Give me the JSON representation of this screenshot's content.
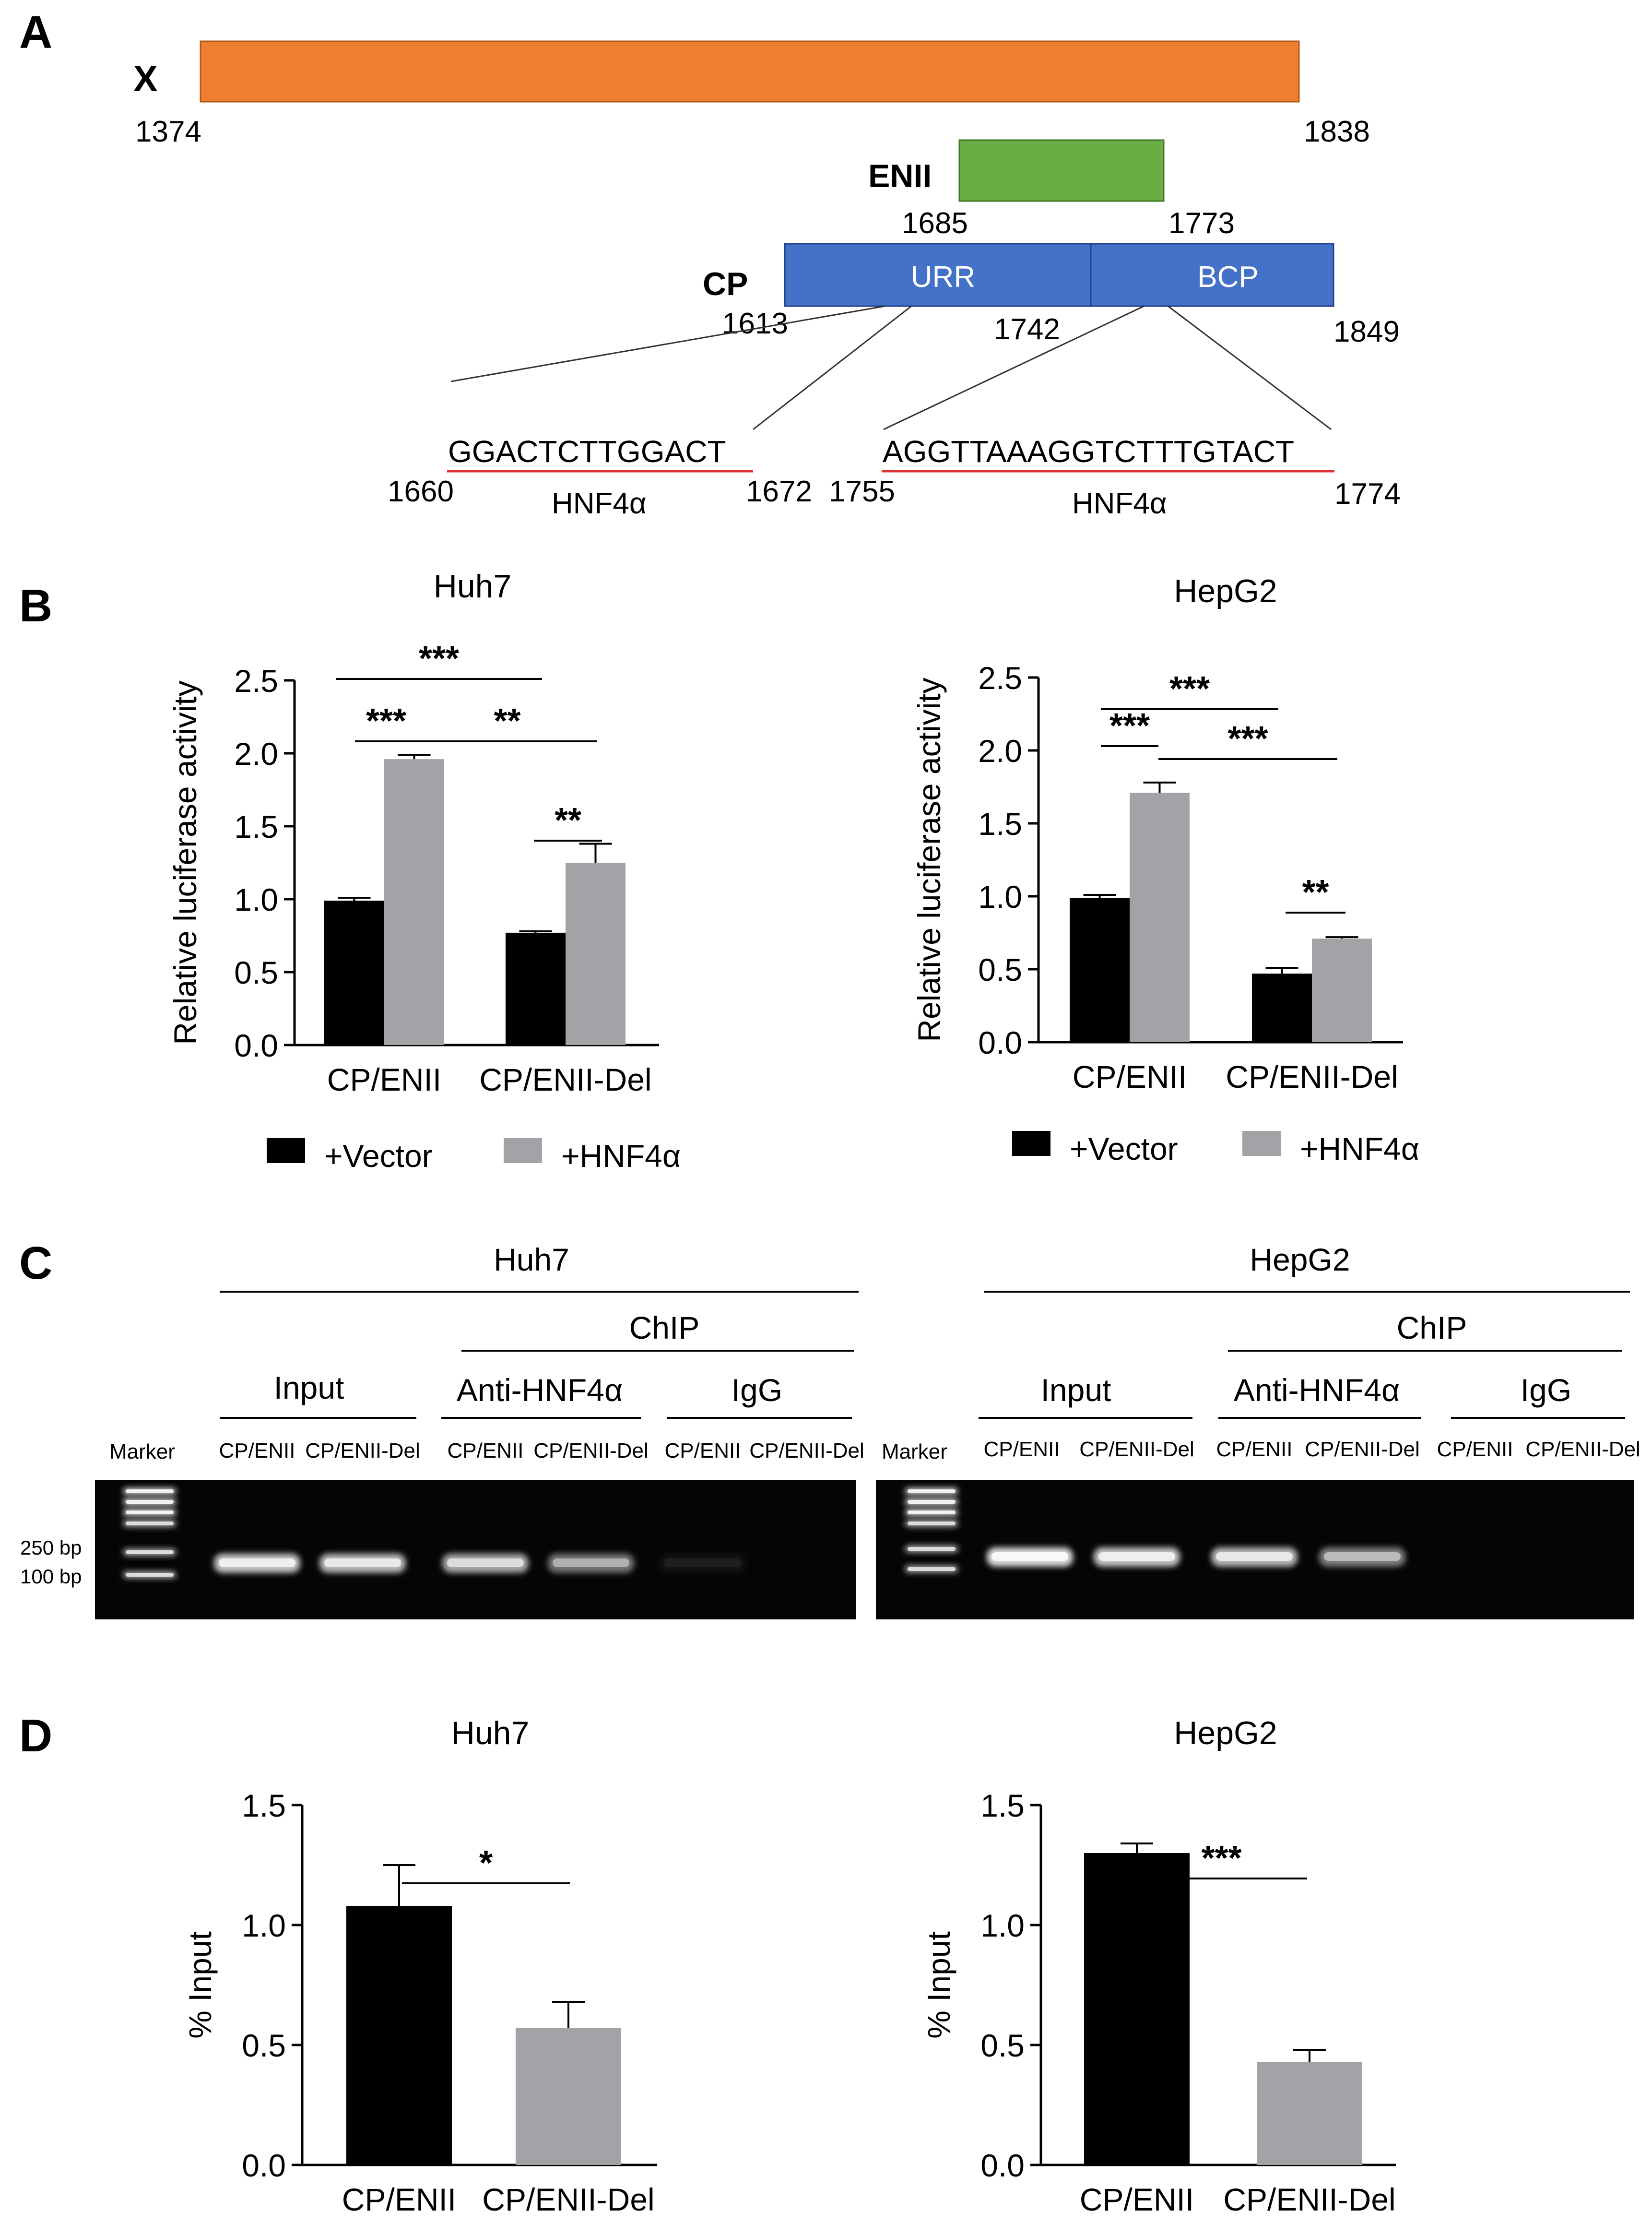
{
  "colors": {
    "vector": "#000000",
    "hnf4a": "#a3a3a7",
    "x_bar": "#ef7f30",
    "enii_bar": "#6aad45",
    "cp_bar": "#4472c8",
    "seq_underline": "#e03030",
    "gel_background": "#050505"
  },
  "panelA": {
    "letter": "A",
    "x": {
      "name": "X",
      "start": "1374",
      "end": "1838"
    },
    "enii": {
      "name": "ENII",
      "start": "1685",
      "end": "1773"
    },
    "cp": {
      "name": "CP",
      "start": "1613",
      "mid": "1742",
      "end": "1849",
      "seg1": "URR",
      "seg2": "BCP"
    },
    "site1": {
      "seq": "GGACTCTTGGACT",
      "start": "1660",
      "end": "1672",
      "factor": "HNF4α"
    },
    "site2": {
      "seq": "AGGTTAAAGGTCTTTGTACT",
      "start": "1755",
      "end": "1774",
      "factor": "HNF4α"
    }
  },
  "panelB": {
    "letter": "B"
  },
  "panelC": {
    "letter": "C",
    "gels": [
      {
        "cell": "Huh7",
        "chip": "ChIP",
        "input": "Input",
        "anti": "Anti-HNF4α",
        "igg": "IgG",
        "marker": "Marker",
        "size_hi": "250 bp",
        "size_lo": "100 bp",
        "lanes": [
          "CP/ENII",
          "CP/ENII-Del",
          "CP/ENII",
          "CP/ENII-Del",
          "CP/ENII",
          "CP/ENII-Del"
        ],
        "band_intensity": [
          0.85,
          0.8,
          0.72,
          0.5,
          0.06,
          0.0
        ]
      },
      {
        "cell": "HepG2",
        "chip": "ChIP",
        "input": "Input",
        "anti": "Anti-HNF4α",
        "igg": "IgG",
        "marker": "Marker",
        "lanes": [
          "CP/ENII",
          "CP/ENII-Del",
          "CP/ENII",
          "CP/ENII-Del",
          "CP/ENII",
          "CP/ENII-Del"
        ],
        "band_intensity": [
          0.95,
          0.85,
          0.8,
          0.55,
          0.0,
          0.0
        ]
      }
    ]
  },
  "panelD": {
    "letter": "D"
  },
  "chart_data": [
    {
      "id": "B-Huh7",
      "type": "bar",
      "title": "Huh7",
      "ylabel": "Relative luciferase activity",
      "ylim": [
        0,
        2.5
      ],
      "yticks": [
        "0.0",
        "0.5",
        "1.0",
        "1.5",
        "2.0",
        "2.5"
      ],
      "categories": [
        "CP/ENII",
        "CP/ENII-Del"
      ],
      "series": [
        {
          "name": "+Vector",
          "values": [
            0.99,
            0.77
          ],
          "errors": [
            0.02,
            0.01
          ]
        },
        {
          "name": "+HNF4α",
          "values": [
            1.96,
            1.25
          ],
          "errors": [
            0.03,
            0.13
          ]
        }
      ],
      "significance": [
        {
          "label": "***",
          "from": "CP/ENII +Vector",
          "to": "CP/ENII-Del +Vector"
        },
        {
          "label": "***",
          "from": "CP/ENII +Vector",
          "to": "CP/ENII +HNF4α"
        },
        {
          "label": "**",
          "from": "CP/ENII +HNF4α",
          "to": "CP/ENII-Del +HNF4α"
        },
        {
          "label": "**",
          "from": "CP/ENII-Del +Vector",
          "to": "CP/ENII-Del +HNF4α"
        }
      ],
      "legend": "bottom"
    },
    {
      "id": "B-HepG2",
      "type": "bar",
      "title": "HepG2",
      "ylabel": "Relative luciferase activity",
      "ylim": [
        0,
        2.5
      ],
      "yticks": [
        "0.0",
        "0.5",
        "1.0",
        "1.5",
        "2.0",
        "2.5"
      ],
      "categories": [
        "CP/ENII",
        "CP/ENII-Del"
      ],
      "series": [
        {
          "name": "+Vector",
          "values": [
            0.99,
            0.47
          ],
          "errors": [
            0.02,
            0.04
          ]
        },
        {
          "name": "+HNF4α",
          "values": [
            1.71,
            0.71
          ],
          "errors": [
            0.07,
            0.01
          ]
        }
      ],
      "significance": [
        {
          "label": "***",
          "from": "CP/ENII +Vector",
          "to": "CP/ENII-Del +Vector"
        },
        {
          "label": "***",
          "from": "CP/ENII +Vector",
          "to": "CP/ENII +HNF4α"
        },
        {
          "label": "***",
          "from": "CP/ENII +HNF4α",
          "to": "CP/ENII-Del +HNF4α"
        },
        {
          "label": "**",
          "from": "CP/ENII-Del +Vector",
          "to": "CP/ENII-Del +HNF4α"
        }
      ],
      "legend": "bottom"
    },
    {
      "id": "D-Huh7",
      "type": "bar",
      "title": "Huh7",
      "ylabel": "% Input",
      "ylim": [
        0,
        1.5
      ],
      "yticks": [
        "0.0",
        "0.5",
        "1.0",
        "1.5"
      ],
      "categories": [
        "CP/ENII",
        "CP/ENII-Del"
      ],
      "values": [
        1.08,
        0.57
      ],
      "errors": [
        0.17,
        0.11
      ],
      "significance": [
        {
          "label": "*",
          "from": "CP/ENII",
          "to": "CP/ENII-Del"
        }
      ]
    },
    {
      "id": "D-HepG2",
      "type": "bar",
      "title": "HepG2",
      "ylabel": "% Input",
      "ylim": [
        0,
        1.5
      ],
      "yticks": [
        "0.0",
        "0.5",
        "1.0",
        "1.5"
      ],
      "categories": [
        "CP/ENII",
        "CP/ENII-Del"
      ],
      "values": [
        1.3,
        0.43
      ],
      "errors": [
        0.04,
        0.05
      ],
      "significance": [
        {
          "label": "***",
          "from": "CP/ENII",
          "to": "CP/ENII-Del"
        }
      ]
    }
  ]
}
